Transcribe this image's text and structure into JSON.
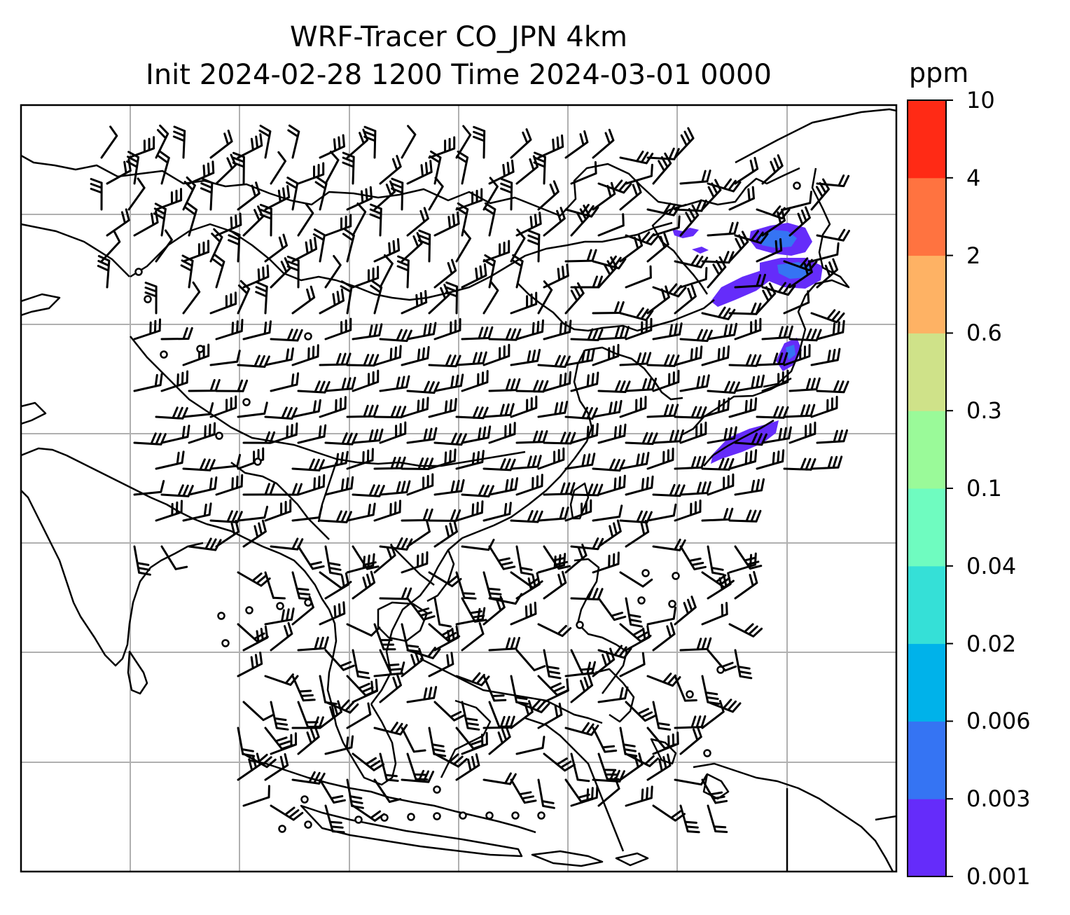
{
  "title": {
    "line1": "WRF-Tracer CO_JPN 4km",
    "line2": "Init 2024-02-28 1200 Time 2024-03-01 0000"
  },
  "colorbar": {
    "unit": "ppm",
    "levels": [
      "0.001",
      "0.003",
      "0.006",
      "0.02",
      "0.04",
      "0.1",
      "0.3",
      "0.6",
      "2",
      "4",
      "10"
    ],
    "colors": [
      "#652cfa",
      "#3574f3",
      "#00b2ea",
      "#35e0d7",
      "#6ffcc0",
      "#9afa99",
      "#cfe289",
      "#feb264",
      "#ff7340",
      "#ff2a15"
    ]
  },
  "map": {
    "coastline_color": "#000000",
    "grid_color": "#b0b0b0",
    "wind_barb_color": "#000000",
    "tracer_plume_color": "#652cfa"
  }
}
